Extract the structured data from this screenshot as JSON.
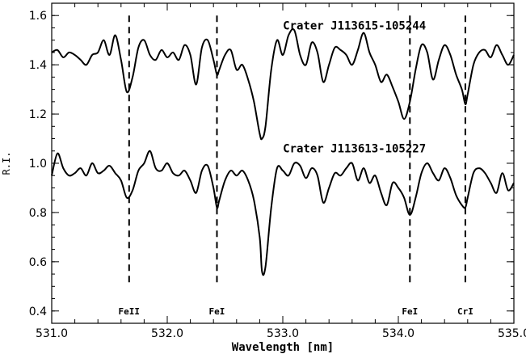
{
  "chart_data": {
    "type": "line",
    "xlabel": "Wavelength [nm]",
    "ylabel": "R.I.",
    "xlim": [
      531.0,
      535.0
    ],
    "ylim": [
      0.35,
      1.65
    ],
    "xticks": [
      531.0,
      532.0,
      533.0,
      534.0,
      535.0
    ],
    "xtick_labels": [
      "531.0",
      "532.0",
      "533.0",
      "534.0",
      "535.0"
    ],
    "yticks": [
      0.4,
      0.6,
      0.8,
      1.0,
      1.2,
      1.4,
      1.6
    ],
    "ytick_labels": [
      "0.4",
      "0.6",
      "0.8",
      "1.0",
      "1.2",
      "1.4",
      "1.6"
    ],
    "series": [
      {
        "name": "Crater J113615-105244",
        "x": [
          531.0,
          531.05,
          531.1,
          531.15,
          531.2,
          531.25,
          531.3,
          531.35,
          531.4,
          531.45,
          531.5,
          531.55,
          531.6,
          531.65,
          531.7,
          531.75,
          531.8,
          531.85,
          531.9,
          531.95,
          532.0,
          532.05,
          532.1,
          532.15,
          532.2,
          532.25,
          532.3,
          532.35,
          532.4,
          532.43,
          532.45,
          532.5,
          532.55,
          532.6,
          532.65,
          532.7,
          532.75,
          532.8,
          532.82,
          532.85,
          532.9,
          532.95,
          533.0,
          533.05,
          533.1,
          533.15,
          533.2,
          533.25,
          533.3,
          533.35,
          533.4,
          533.45,
          533.5,
          533.55,
          533.6,
          533.65,
          533.7,
          533.75,
          533.8,
          533.85,
          533.9,
          533.95,
          534.0,
          534.05,
          534.1,
          534.15,
          534.2,
          534.25,
          534.3,
          534.35,
          534.4,
          534.45,
          534.5,
          534.55,
          534.58,
          534.6,
          534.65,
          534.7,
          534.75,
          534.8,
          534.85,
          534.9,
          534.95,
          535.0
        ],
        "y": [
          1.45,
          1.46,
          1.43,
          1.45,
          1.44,
          1.42,
          1.4,
          1.44,
          1.45,
          1.5,
          1.44,
          1.52,
          1.42,
          1.29,
          1.35,
          1.47,
          1.5,
          1.44,
          1.42,
          1.46,
          1.43,
          1.45,
          1.42,
          1.48,
          1.44,
          1.32,
          1.47,
          1.5,
          1.42,
          1.36,
          1.38,
          1.44,
          1.46,
          1.38,
          1.4,
          1.34,
          1.25,
          1.12,
          1.1,
          1.15,
          1.38,
          1.5,
          1.44,
          1.52,
          1.54,
          1.44,
          1.4,
          1.49,
          1.45,
          1.33,
          1.4,
          1.47,
          1.46,
          1.44,
          1.4,
          1.46,
          1.53,
          1.45,
          1.4,
          1.33,
          1.36,
          1.31,
          1.25,
          1.18,
          1.25,
          1.38,
          1.48,
          1.45,
          1.34,
          1.42,
          1.48,
          1.44,
          1.36,
          1.3,
          1.24,
          1.28,
          1.4,
          1.45,
          1.46,
          1.43,
          1.48,
          1.44,
          1.4,
          1.44
        ]
      },
      {
        "name": "Crater J113613-105227",
        "x": [
          531.0,
          531.05,
          531.1,
          531.15,
          531.2,
          531.25,
          531.3,
          531.35,
          531.4,
          531.45,
          531.5,
          531.55,
          531.6,
          531.65,
          531.7,
          531.75,
          531.8,
          531.85,
          531.9,
          531.95,
          532.0,
          532.05,
          532.1,
          532.15,
          532.2,
          532.25,
          532.3,
          532.35,
          532.4,
          532.43,
          532.45,
          532.5,
          532.55,
          532.6,
          532.65,
          532.7,
          532.75,
          532.8,
          532.82,
          532.85,
          532.9,
          532.95,
          533.0,
          533.05,
          533.1,
          533.15,
          533.2,
          533.25,
          533.3,
          533.35,
          533.4,
          533.45,
          533.5,
          533.55,
          533.6,
          533.65,
          533.7,
          533.75,
          533.8,
          533.85,
          533.9,
          533.95,
          534.0,
          534.05,
          534.1,
          534.15,
          534.2,
          534.25,
          534.3,
          534.35,
          534.4,
          534.45,
          534.5,
          534.55,
          534.58,
          534.6,
          534.65,
          534.7,
          534.75,
          534.8,
          534.85,
          534.9,
          534.95,
          535.0
        ],
        "y": [
          0.95,
          1.04,
          0.98,
          0.95,
          0.96,
          0.98,
          0.95,
          1.0,
          0.96,
          0.97,
          0.99,
          0.96,
          0.93,
          0.86,
          0.89,
          0.97,
          1.0,
          1.05,
          0.98,
          0.97,
          1.0,
          0.96,
          0.95,
          0.97,
          0.93,
          0.88,
          0.97,
          0.99,
          0.9,
          0.82,
          0.85,
          0.93,
          0.97,
          0.95,
          0.97,
          0.93,
          0.85,
          0.7,
          0.56,
          0.58,
          0.82,
          0.98,
          0.97,
          0.95,
          1.0,
          0.99,
          0.94,
          0.98,
          0.95,
          0.84,
          0.9,
          0.96,
          0.95,
          0.98,
          1.0,
          0.93,
          0.98,
          0.92,
          0.95,
          0.88,
          0.83,
          0.92,
          0.9,
          0.86,
          0.79,
          0.86,
          0.96,
          1.0,
          0.96,
          0.93,
          0.98,
          0.94,
          0.87,
          0.83,
          0.82,
          0.86,
          0.96,
          0.98,
          0.96,
          0.92,
          0.88,
          0.96,
          0.89,
          0.92
        ]
      }
    ],
    "line_markers": [
      {
        "label": "FeII",
        "x": 531.67
      },
      {
        "label": "FeI",
        "x": 532.43
      },
      {
        "label": "FeI",
        "x": 534.1
      },
      {
        "label": "CrI",
        "x": 534.58
      }
    ],
    "marker_ylim": [
      0.5,
      1.6
    ],
    "grid": false,
    "legend": "none"
  }
}
